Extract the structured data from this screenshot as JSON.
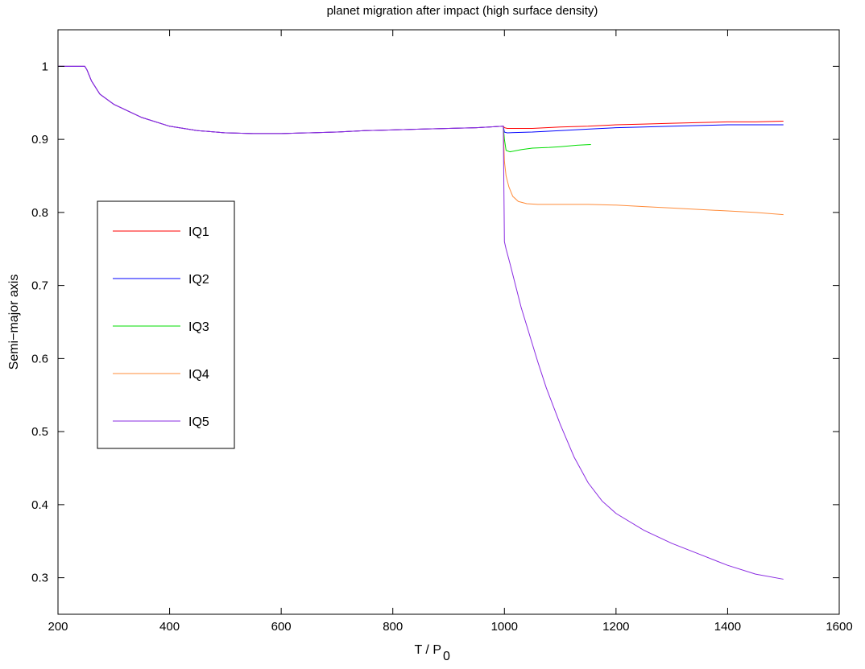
{
  "chart_data": {
    "type": "line",
    "title": "planet migration after impact  (high surface density)",
    "xlabel_main": "T  /  P",
    "xlabel_sub": "0",
    "ylabel": "Semi−major axis",
    "xlim": [
      200,
      1600
    ],
    "ylim": [
      0.25,
      1.05
    ],
    "xticks": [
      200,
      400,
      600,
      800,
      1000,
      1200,
      1400,
      1600
    ],
    "yticks": [
      0.3,
      0.4,
      0.5,
      0.6,
      0.7,
      0.8,
      0.9,
      1
    ],
    "ytick_labels": [
      "0.3",
      "0.4",
      "0.5",
      "0.6",
      "0.7",
      "0.8",
      "0.9",
      "1"
    ],
    "grid": false,
    "legend_placement": "center-left",
    "series": [
      {
        "name": "IQ1",
        "color": "#ff0000",
        "x": [
          200,
          248,
          252,
          260,
          275,
          300,
          350,
          400,
          450,
          500,
          550,
          600,
          650,
          700,
          750,
          800,
          850,
          900,
          950,
          998,
          1000,
          1005,
          1050,
          1100,
          1150,
          1200,
          1250,
          1300,
          1350,
          1400,
          1450,
          1500
        ],
        "y": [
          1.0,
          1.0,
          0.995,
          0.98,
          0.962,
          0.948,
          0.93,
          0.918,
          0.912,
          0.909,
          0.908,
          0.908,
          0.909,
          0.91,
          0.912,
          0.913,
          0.914,
          0.915,
          0.916,
          0.918,
          0.916,
          0.915,
          0.915,
          0.917,
          0.918,
          0.92,
          0.921,
          0.922,
          0.923,
          0.924,
          0.924,
          0.925
        ]
      },
      {
        "name": "IQ2",
        "color": "#0000ff",
        "x": [
          200,
          248,
          252,
          260,
          275,
          300,
          350,
          400,
          450,
          500,
          550,
          600,
          650,
          700,
          750,
          800,
          850,
          900,
          950,
          998,
          1000,
          1005,
          1050,
          1100,
          1150,
          1200,
          1250,
          1300,
          1350,
          1400,
          1450,
          1500
        ],
        "y": [
          1.0,
          1.0,
          0.995,
          0.98,
          0.962,
          0.948,
          0.93,
          0.918,
          0.912,
          0.909,
          0.908,
          0.908,
          0.909,
          0.91,
          0.912,
          0.913,
          0.914,
          0.915,
          0.916,
          0.918,
          0.91,
          0.909,
          0.91,
          0.912,
          0.914,
          0.916,
          0.917,
          0.918,
          0.919,
          0.92,
          0.92,
          0.92
        ]
      },
      {
        "name": "IQ3",
        "color": "#00dd00",
        "x": [
          998,
          1000,
          1003,
          1010,
          1030,
          1050,
          1080,
          1100,
          1130,
          1155
        ],
        "y": [
          0.918,
          0.9,
          0.885,
          0.883,
          0.886,
          0.888,
          0.889,
          0.89,
          0.892,
          0.893
        ]
      },
      {
        "name": "IQ4",
        "color": "#ff8c3a",
        "x": [
          998,
          1000,
          1003,
          1008,
          1015,
          1025,
          1040,
          1060,
          1100,
          1150,
          1200,
          1250,
          1300,
          1350,
          1400,
          1450,
          1500
        ],
        "y": [
          0.918,
          0.87,
          0.85,
          0.835,
          0.822,
          0.815,
          0.812,
          0.811,
          0.811,
          0.811,
          0.81,
          0.808,
          0.806,
          0.804,
          0.802,
          0.8,
          0.797
        ]
      },
      {
        "name": "IQ5",
        "color": "#8a2be2",
        "x": [
          200,
          248,
          252,
          260,
          275,
          300,
          350,
          400,
          450,
          500,
          550,
          600,
          650,
          700,
          750,
          800,
          850,
          900,
          950,
          998,
          1000,
          1003,
          1010,
          1020,
          1030,
          1040,
          1050,
          1060,
          1075,
          1100,
          1125,
          1150,
          1175,
          1200,
          1250,
          1300,
          1350,
          1400,
          1450,
          1500
        ],
        "y": [
          1.0,
          1.0,
          0.995,
          0.98,
          0.962,
          0.948,
          0.93,
          0.918,
          0.912,
          0.909,
          0.908,
          0.908,
          0.909,
          0.91,
          0.912,
          0.913,
          0.914,
          0.915,
          0.916,
          0.918,
          0.76,
          0.75,
          0.73,
          0.7,
          0.67,
          0.645,
          0.62,
          0.595,
          0.56,
          0.51,
          0.465,
          0.43,
          0.405,
          0.388,
          0.365,
          0.347,
          0.332,
          0.317,
          0.305,
          0.298
        ]
      }
    ]
  }
}
